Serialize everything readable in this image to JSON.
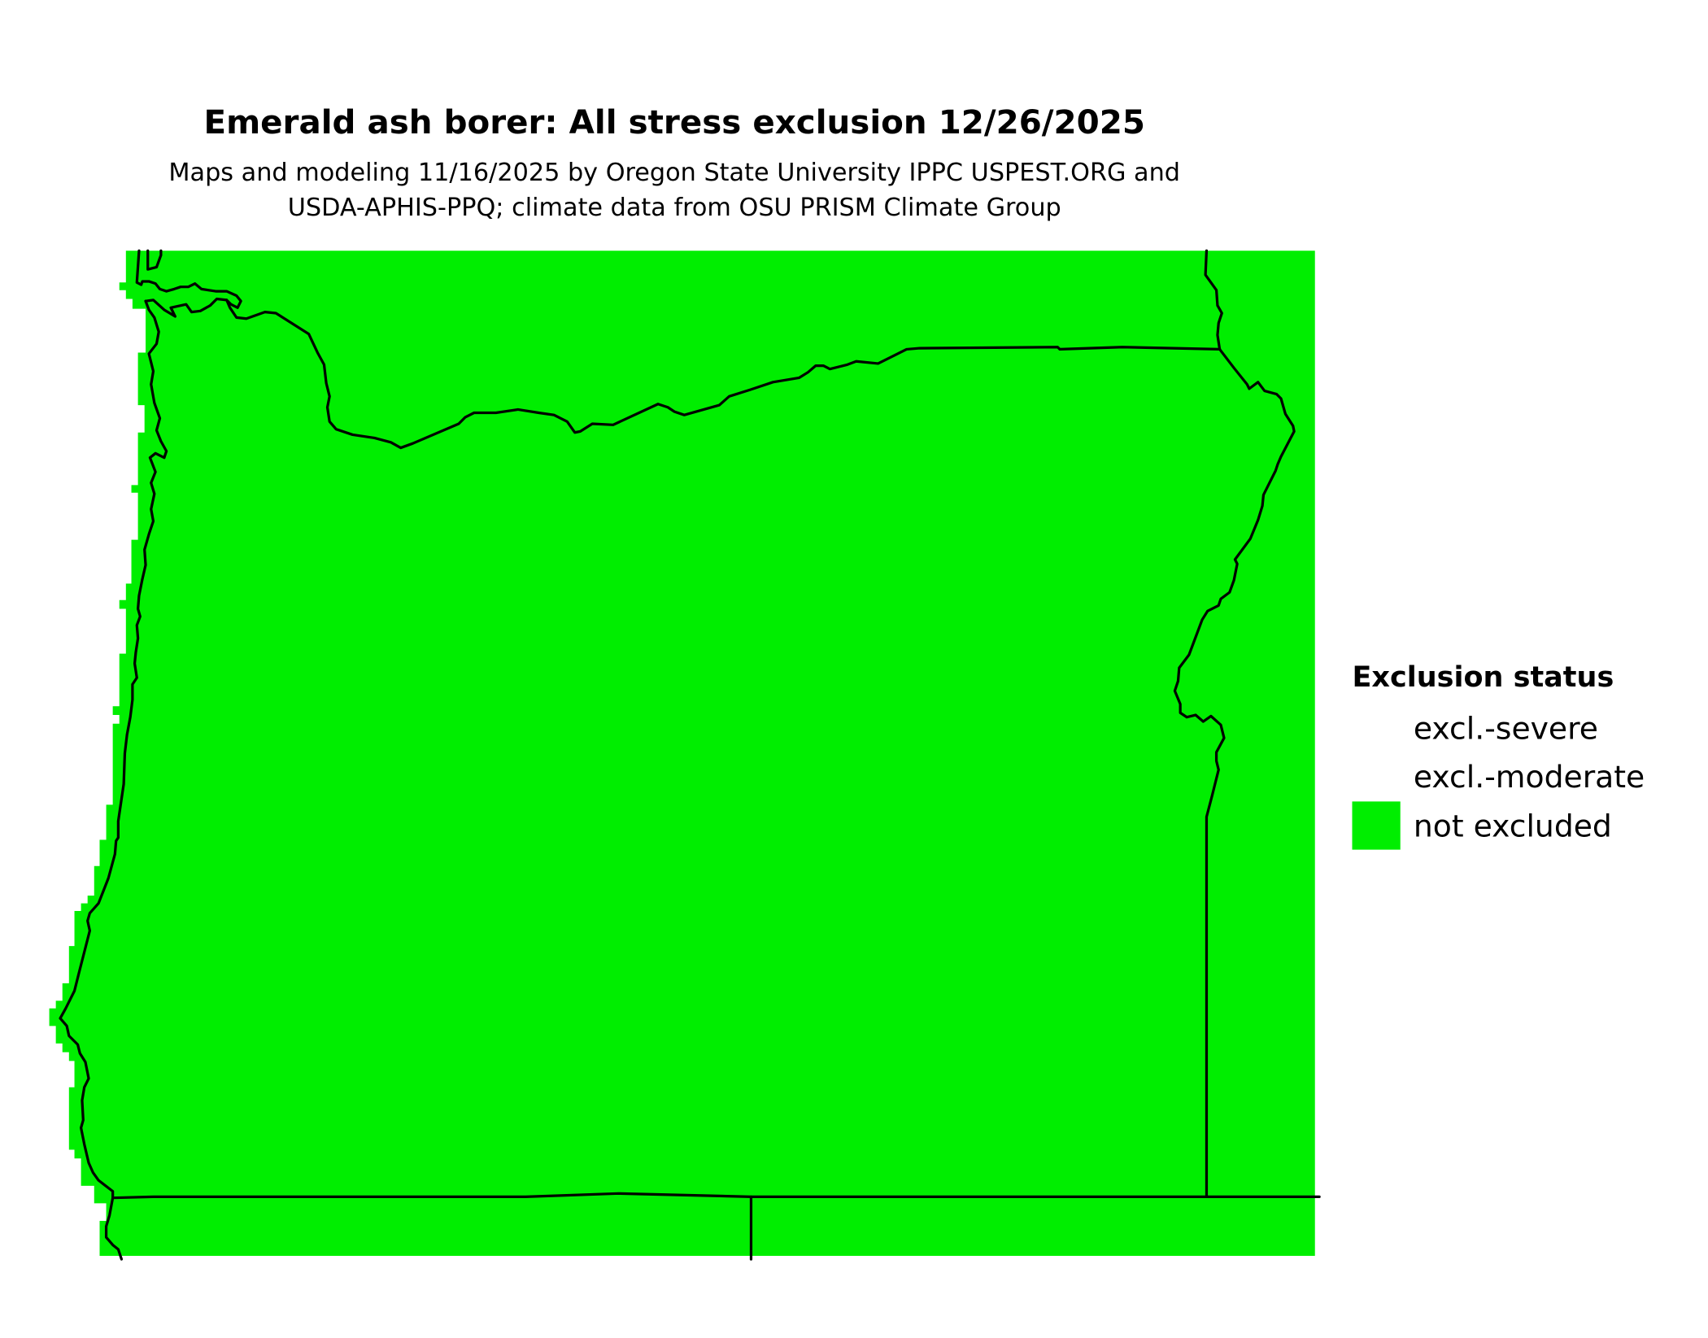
{
  "title": "Emerald ash borer: All stress exclusion 12/26/2025",
  "subtitle_line1": "Maps and modeling 11/16/2025 by Oregon State University IPPC USPEST.ORG and",
  "subtitle_line2": "USDA-APHIS-PPQ; climate data from OSU PRISM Climate Group",
  "legend": {
    "title": "Exclusion status",
    "items": [
      {
        "label": "excl.-severe",
        "color": "#ffffff"
      },
      {
        "label": "excl.-moderate",
        "color": "#ffffff"
      },
      {
        "label": "not excluded",
        "color": "#00ee00"
      }
    ]
  },
  "map": {
    "region": "Oregon",
    "fill_status": "not excluded",
    "fill_color": "#00ee00",
    "border_color": "#000000"
  }
}
